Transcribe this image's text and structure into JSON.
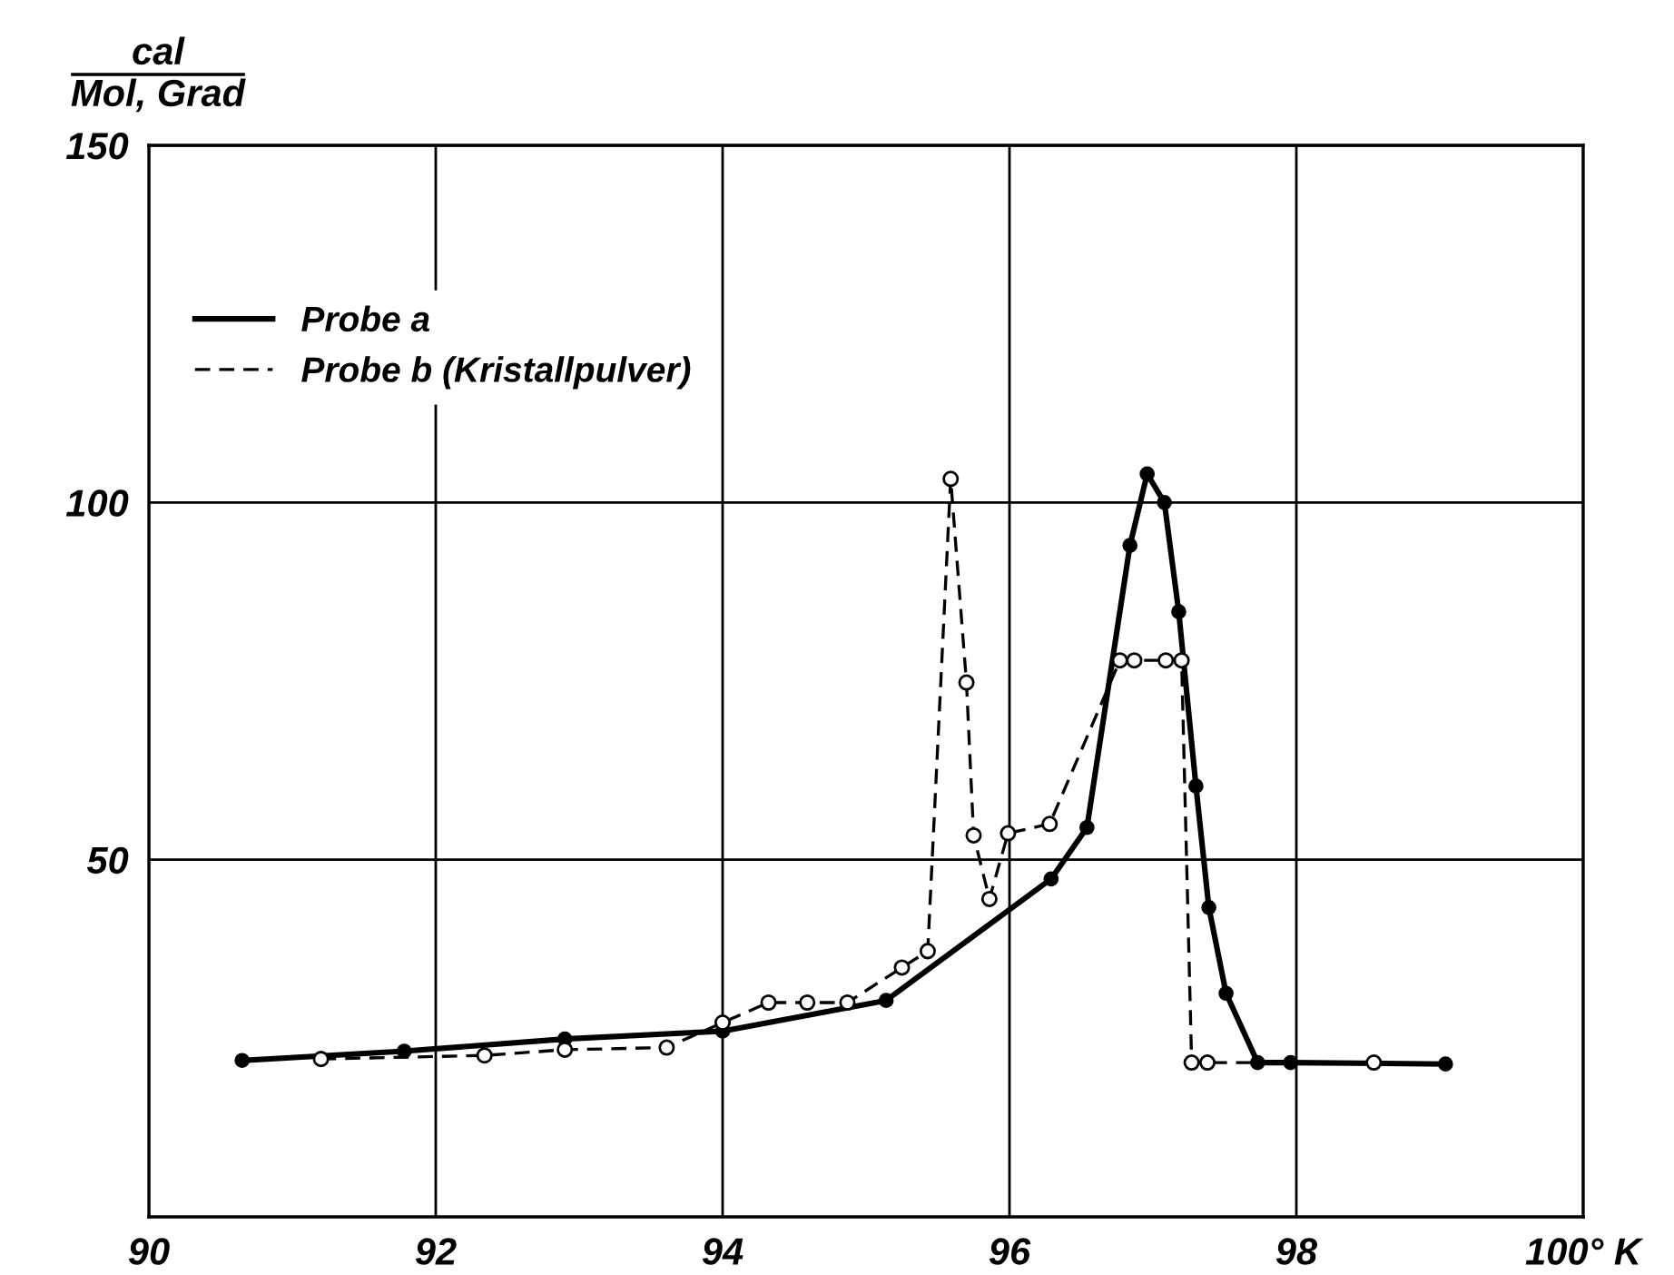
{
  "chart_data": {
    "type": "line",
    "ylabel": "cal\nMol, Grad",
    "xlim": [
      90,
      100
    ],
    "xticks": [
      90,
      92,
      94,
      96,
      98,
      {
        "value": 100,
        "label": "100° K"
      }
    ],
    "ylim": [
      0,
      150
    ],
    "yticks": [
      50,
      100,
      150
    ],
    "grid": true,
    "legend": "top left",
    "marker": "circle",
    "series": [
      {
        "name": "Probe a",
        "color": "#000000",
        "line_style": "solid",
        "x": [
          90.65,
          91.78,
          92.9,
          94.0,
          95.14,
          96.29,
          96.54,
          96.84,
          96.96,
          97.08,
          97.18,
          97.3,
          97.39,
          97.51,
          97.73,
          97.96,
          99.04
        ],
        "values": [
          21.9,
          23.2,
          24.9,
          26,
          30.3,
          47.3,
          54.5,
          94,
          104,
          100,
          84.7,
          60.3,
          43.3,
          31.3,
          21.6,
          21.6,
          21.4
        ]
      },
      {
        "name": "Probe b (Kristallpulver)",
        "color": "#000000",
        "line_style": "dashed",
        "x": [
          91.2,
          92.34,
          92.9,
          93.61,
          94.0,
          94.32,
          94.59,
          94.87,
          95.25,
          95.43,
          95.59,
          95.7,
          95.75,
          95.86,
          95.99,
          96.28,
          96.77,
          96.87,
          97.09,
          97.2,
          97.27,
          97.38,
          98.54
        ],
        "values": [
          22.1,
          22.6,
          23.4,
          23.7,
          27.2,
          30,
          30,
          30,
          34.9,
          37.2,
          103.3,
          74.8,
          53.4,
          44.5,
          53.7,
          55,
          77.9,
          77.9,
          77.9,
          77.9,
          21.6,
          21.6,
          21.6
        ]
      }
    ]
  }
}
